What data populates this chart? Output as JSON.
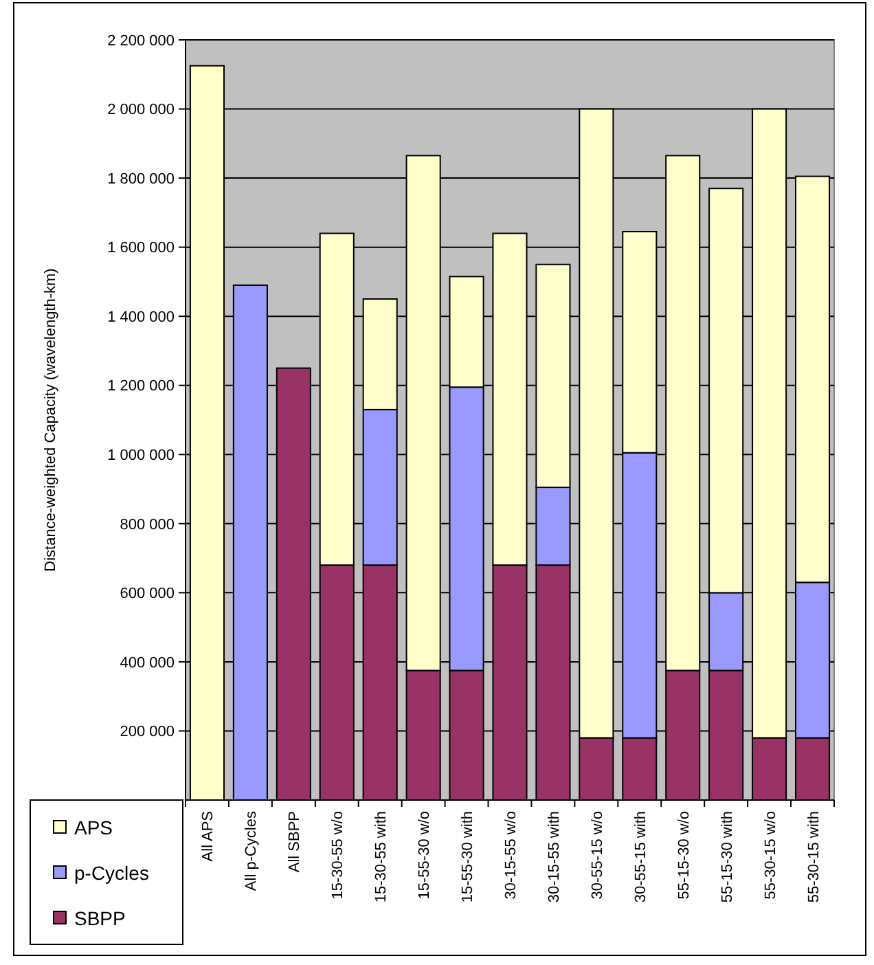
{
  "chart_data": {
    "type": "bar",
    "stacked": true,
    "ylabel": "Distance-weighted Capacity (wavelength-km)",
    "categories": [
      "All APS",
      "All p-Cycles",
      "All SBPP",
      "15-30-55 w/o",
      "15-30-55 with",
      "15-55-30 w/o",
      "15-55-30 with",
      "30-15-55 w/o",
      "30-15-55 with",
      "30-55-15 w/o",
      "30-55-15 with",
      "55-15-30 w/o",
      "55-15-30 with",
      "55-30-15 w/o",
      "55-30-15 with"
    ],
    "series": [
      {
        "name": "SBPP",
        "color": "#993366",
        "values": [
          0,
          0,
          1250000,
          680000,
          680000,
          375000,
          375000,
          680000,
          680000,
          180000,
          180000,
          375000,
          375000,
          180000,
          180000
        ]
      },
      {
        "name": "p-Cycles",
        "color": "#9999ff",
        "values": [
          0,
          1490000,
          0,
          0,
          450000,
          0,
          820000,
          0,
          225000,
          0,
          825000,
          0,
          225000,
          0,
          450000
        ]
      },
      {
        "name": "APS",
        "color": "#ffffcc",
        "values": [
          2125000,
          0,
          0,
          960000,
          320000,
          1490000,
          320000,
          960000,
          645000,
          1820000,
          640000,
          1490000,
          1170000,
          1820000,
          1175000
        ]
      }
    ],
    "ylim": [
      0,
      2200000
    ],
    "yticks": [
      {
        "value": 200000,
        "label": "200 000"
      },
      {
        "value": 400000,
        "label": "400 000"
      },
      {
        "value": 600000,
        "label": "600 000"
      },
      {
        "value": 800000,
        "label": "800 000"
      },
      {
        "value": 1000000,
        "label": "1 000 000"
      },
      {
        "value": 1200000,
        "label": "1 200 000"
      },
      {
        "value": 1400000,
        "label": "1 400 000"
      },
      {
        "value": 1600000,
        "label": "1 600 000"
      },
      {
        "value": 1800000,
        "label": "1 800 000"
      },
      {
        "value": 2000000,
        "label": "2 000 000"
      },
      {
        "value": 2200000,
        "label": "2 200 000"
      }
    ],
    "grid": "y",
    "legend": "bottom left"
  }
}
